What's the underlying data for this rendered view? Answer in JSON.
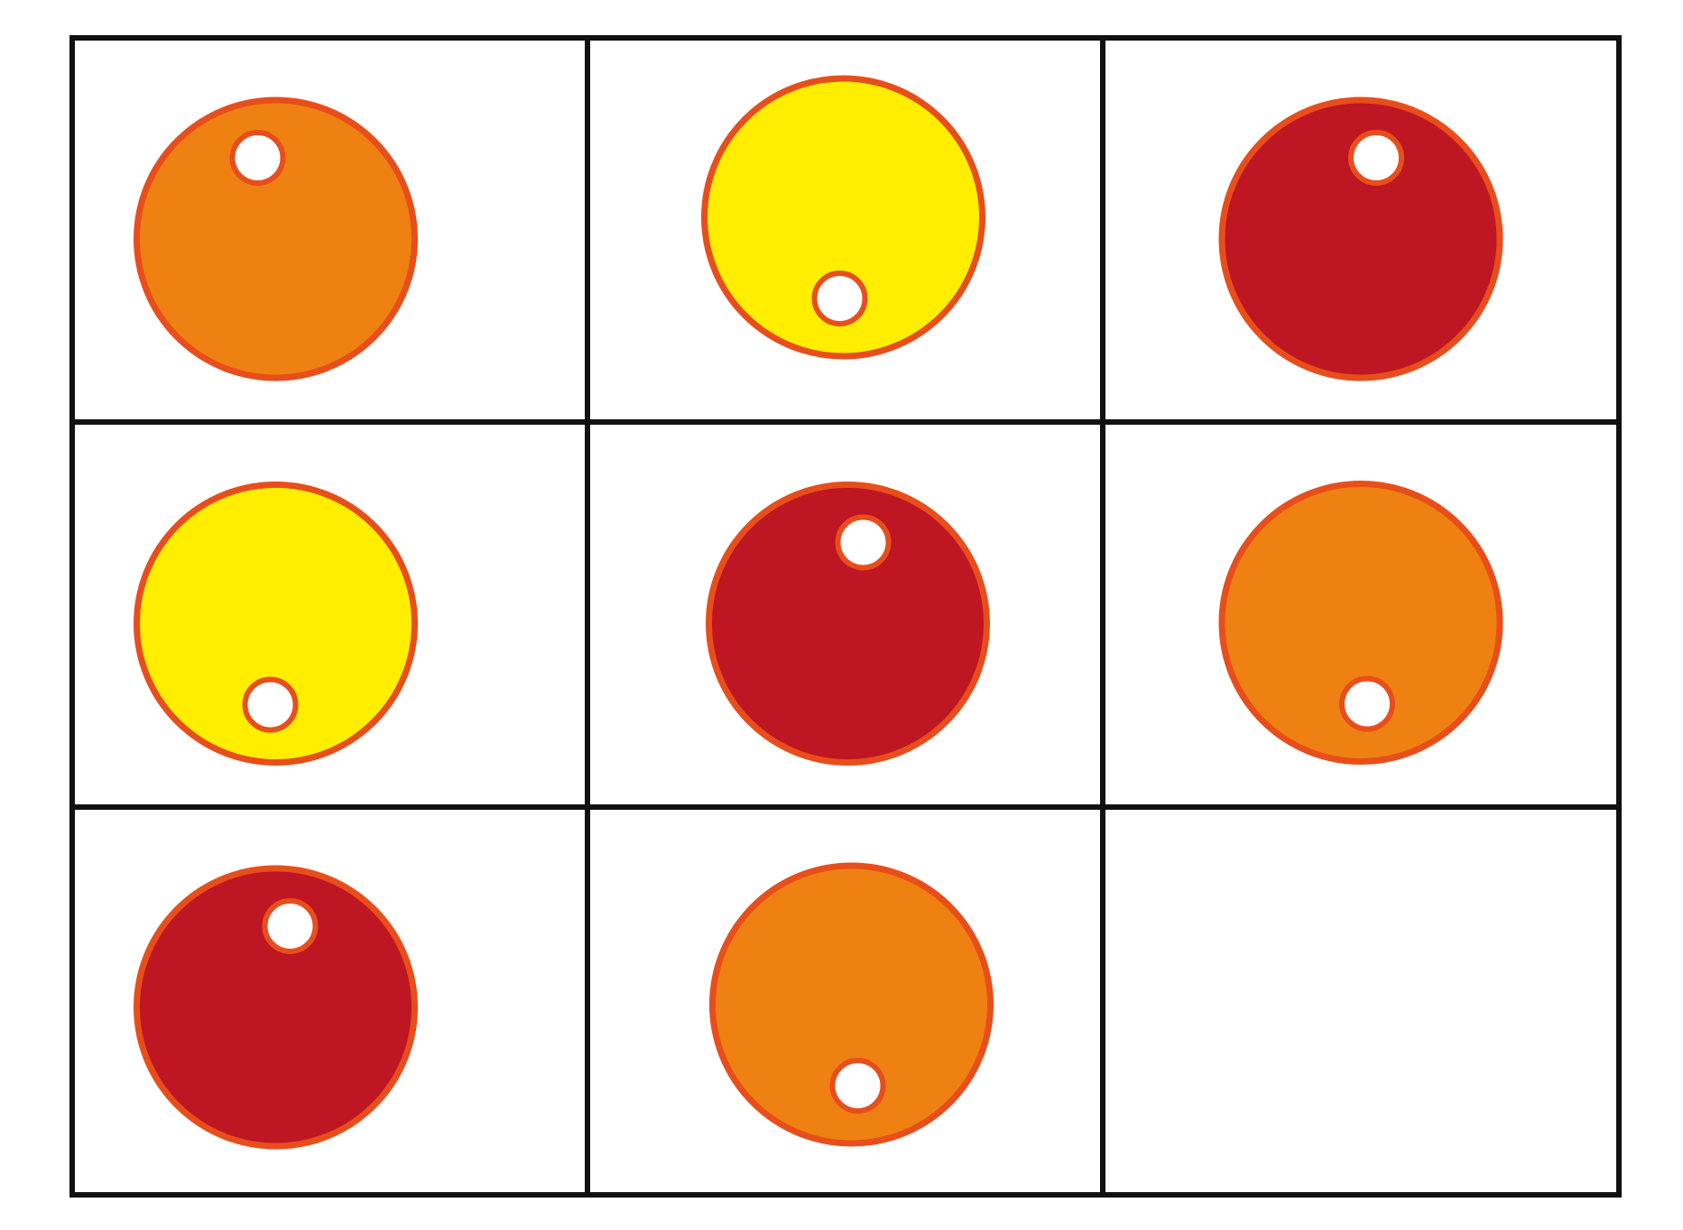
{
  "puzzle": {
    "rows": 3,
    "columns": 3,
    "colors": {
      "orange": "#EF8012",
      "yellow": "#FFEE00",
      "red": "#BE1622",
      "outline": "#E84E1B",
      "grid_line": "#111111",
      "background": "#FFFFFF"
    },
    "cells": [
      {
        "row": 1,
        "col": 1,
        "ball_color": "orange",
        "dot_position": "top",
        "empty": false
      },
      {
        "row": 1,
        "col": 2,
        "ball_color": "yellow",
        "dot_position": "bottom",
        "empty": false
      },
      {
        "row": 1,
        "col": 3,
        "ball_color": "red",
        "dot_position": "top",
        "empty": false
      },
      {
        "row": 2,
        "col": 1,
        "ball_color": "yellow",
        "dot_position": "bottom",
        "empty": false
      },
      {
        "row": 2,
        "col": 2,
        "ball_color": "red",
        "dot_position": "top",
        "empty": false
      },
      {
        "row": 2,
        "col": 3,
        "ball_color": "orange",
        "dot_position": "bottom",
        "empty": false
      },
      {
        "row": 3,
        "col": 1,
        "ball_color": "red",
        "dot_position": "top",
        "empty": false
      },
      {
        "row": 3,
        "col": 2,
        "ball_color": "orange",
        "dot_position": "bottom",
        "empty": false
      },
      {
        "row": 3,
        "col": 3,
        "ball_color": "",
        "dot_position": "",
        "empty": true
      }
    ]
  }
}
